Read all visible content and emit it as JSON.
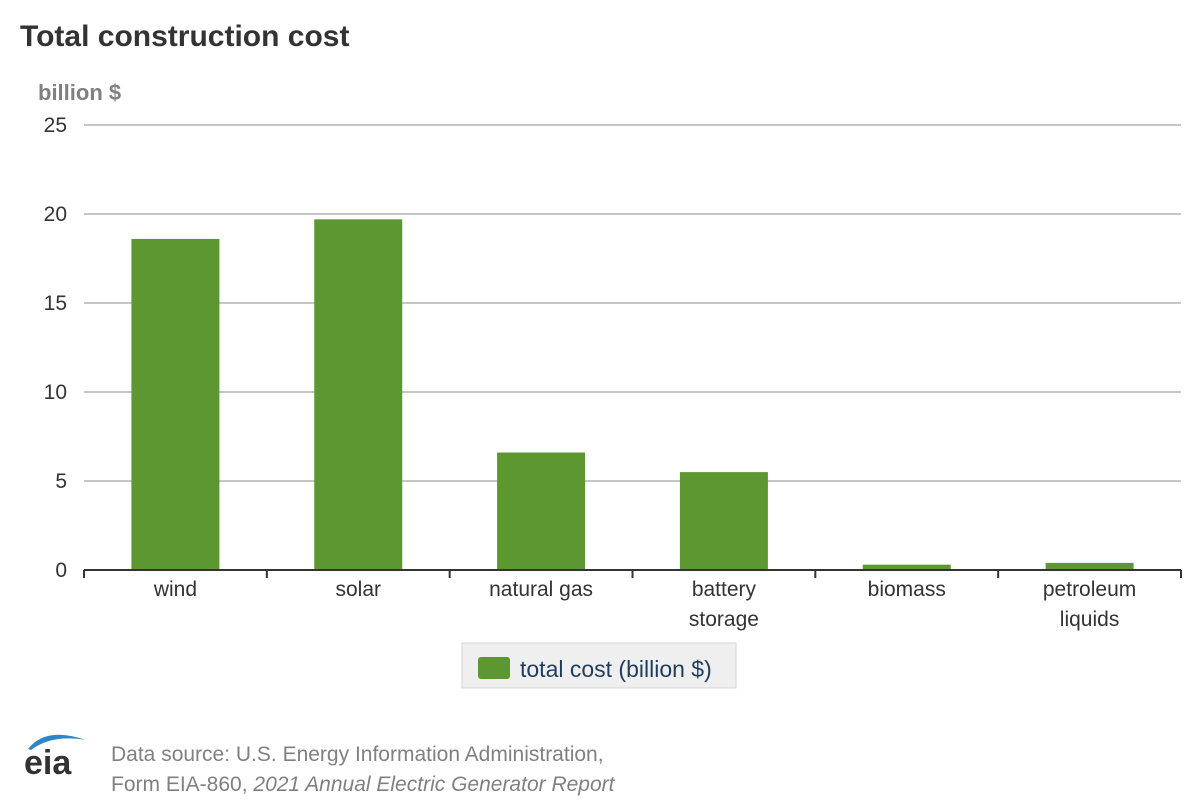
{
  "title": "Total construction cost",
  "chart_data": {
    "type": "bar",
    "title": "Total construction cost",
    "ylabel": "billion $",
    "xlabel": "",
    "categories": [
      [
        "wind"
      ],
      [
        "solar"
      ],
      [
        "natural gas"
      ],
      [
        "battery",
        "storage"
      ],
      [
        "biomass"
      ],
      [
        "petroleum",
        "liquids"
      ]
    ],
    "series": [
      {
        "name": "total cost (billion $)",
        "values": [
          18.6,
          19.7,
          6.6,
          5.5,
          0.3,
          0.4
        ],
        "color": "#5d9732"
      }
    ],
    "ylim": [
      0,
      25
    ],
    "yticks": [
      0,
      5,
      10,
      15,
      20,
      25
    ],
    "grid": true,
    "legend_position": "bottom"
  },
  "legend": {
    "label": "total cost (billion $)",
    "text_color": "#1f3d5e"
  },
  "footer": {
    "logo_text": "eia",
    "source_line1": "Data source: U.S. Energy Information Administration,",
    "source_line2_plain": "Form EIA-860, ",
    "source_line2_italic": "2021 Annual Electric Generator Report"
  },
  "colors": {
    "bar": "#5d9732",
    "grid": "#b3b3b3",
    "axis": "#333333",
    "logo_blue": "#2a86c8",
    "logo_text": "#333333",
    "source_text": "#808080"
  }
}
